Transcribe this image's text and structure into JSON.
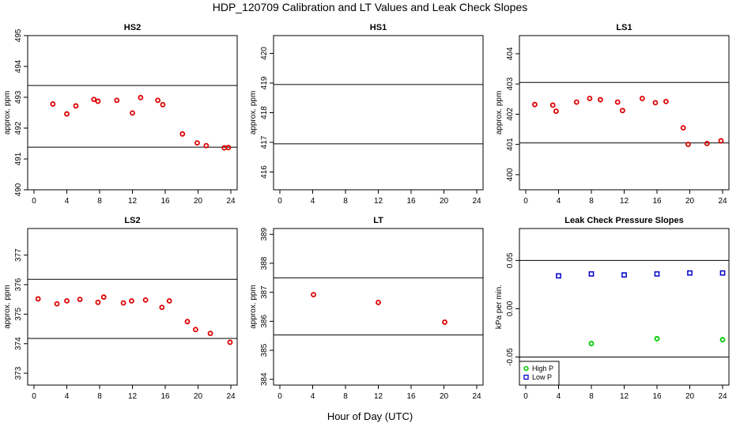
{
  "figure": {
    "title": "HDP_120709  Calibration and LT Values and Leak Check Slopes",
    "xlabel": "Hour of Day (UTC)"
  },
  "chart_data": [
    {
      "type": "scatter",
      "title": "HS2",
      "ylabel": "approx. ppm",
      "xlim": [
        0,
        24
      ],
      "ylim": [
        490,
        495
      ],
      "xticks": [
        0,
        4,
        8,
        12,
        16,
        20,
        24
      ],
      "yticks": [
        490,
        491,
        492,
        493,
        494,
        495
      ],
      "hlines": [
        493.38,
        491.38
      ],
      "series": [
        {
          "color": "#dd0000",
          "marker": "circle",
          "x": [
            2.3,
            4.0,
            5.1,
            7.3,
            7.8,
            10.1,
            12.0,
            13.0,
            15.1,
            15.7,
            18.1,
            19.9,
            21.0,
            23.2,
            23.7
          ],
          "y": [
            492.78,
            492.46,
            492.72,
            492.93,
            492.87,
            492.9,
            492.49,
            492.99,
            492.9,
            492.76,
            491.81,
            491.52,
            491.43,
            491.36,
            491.37
          ]
        }
      ]
    },
    {
      "type": "scatter",
      "title": "HS1",
      "ylabel": "approx. ppm",
      "xlim": [
        0,
        24
      ],
      "ylim": [
        415.4,
        420.6
      ],
      "xticks": [
        0,
        4,
        8,
        12,
        16,
        20,
        24
      ],
      "yticks": [
        416,
        417,
        418,
        419,
        420
      ],
      "hlines": [
        418.95,
        416.95
      ],
      "series": []
    },
    {
      "type": "scatter",
      "title": "LS1",
      "ylabel": "approx. ppm",
      "xlim": [
        0,
        24
      ],
      "ylim": [
        399.5,
        404.6
      ],
      "xticks": [
        0,
        4,
        8,
        12,
        16,
        20,
        24
      ],
      "yticks": [
        400,
        401,
        402,
        403,
        404
      ],
      "hlines": [
        403.05,
        401.05
      ],
      "series": [
        {
          "color": "#dd0000",
          "marker": "circle",
          "x": [
            1.1,
            3.3,
            3.7,
            6.2,
            7.8,
            9.1,
            11.2,
            11.8,
            14.2,
            15.8,
            17.1,
            19.2,
            19.8,
            22.1,
            23.8
          ],
          "y": [
            402.32,
            402.3,
            402.1,
            402.4,
            402.52,
            402.48,
            402.4,
            402.12,
            402.52,
            402.38,
            402.42,
            401.55,
            401.0,
            401.03,
            401.12
          ]
        }
      ]
    },
    {
      "type": "scatter",
      "title": "LS2",
      "ylabel": "approx. ppm",
      "xlim": [
        0,
        24
      ],
      "ylim": [
        372.6,
        377.9
      ],
      "xticks": [
        0,
        4,
        8,
        12,
        16,
        20,
        24
      ],
      "yticks": [
        373,
        374,
        375,
        376,
        377
      ],
      "hlines": [
        376.18,
        374.18
      ],
      "series": [
        {
          "color": "#dd0000",
          "marker": "circle",
          "x": [
            0.5,
            2.8,
            4.0,
            5.6,
            7.8,
            8.5,
            10.9,
            11.9,
            13.6,
            15.6,
            16.5,
            18.7,
            19.7,
            21.5,
            23.9
          ],
          "y": [
            375.52,
            375.35,
            375.45,
            375.5,
            375.4,
            375.58,
            375.38,
            375.45,
            375.48,
            375.23,
            375.45,
            374.75,
            374.48,
            374.35,
            374.05
          ]
        }
      ]
    },
    {
      "type": "scatter",
      "title": "LT",
      "ylabel": "approx. ppm",
      "xlim": [
        0,
        24
      ],
      "ylim": [
        383.8,
        389.2
      ],
      "xticks": [
        0,
        4,
        8,
        12,
        16,
        20,
        24
      ],
      "yticks": [
        384,
        385,
        386,
        387,
        388,
        389
      ],
      "hlines": [
        387.5,
        385.53
      ],
      "series": [
        {
          "color": "#dd0000",
          "marker": "circle",
          "x": [
            4.1,
            12.0,
            20.1
          ],
          "y": [
            386.92,
            386.65,
            385.97
          ]
        }
      ]
    },
    {
      "type": "scatter",
      "title": "Leak Check Pressure Slopes",
      "ylabel": "kPa per min.",
      "xlim": [
        0,
        24
      ],
      "ylim": [
        -0.079,
        0.083
      ],
      "xticks": [
        0,
        4,
        8,
        12,
        16,
        20,
        24
      ],
      "yticks": [
        -0.05,
        0.0,
        0.05
      ],
      "ytick_labels": [
        "-0.05",
        "0.00",
        "0.05"
      ],
      "hlines": [
        0.05,
        -0.05
      ],
      "legend": {
        "position": "bottom-left"
      },
      "series": [
        {
          "name": "High P",
          "color": "#00cc00",
          "marker": "circle",
          "x": [
            8.0,
            16.0,
            24.0
          ],
          "y": [
            -0.036,
            -0.031,
            -0.032
          ]
        },
        {
          "name": "Low P",
          "color": "#0000cc",
          "marker": "square",
          "x": [
            4.0,
            8.0,
            12.0,
            16.0,
            20.0,
            24.0
          ],
          "y": [
            0.034,
            0.036,
            0.035,
            0.036,
            0.037,
            0.037
          ]
        }
      ]
    }
  ]
}
